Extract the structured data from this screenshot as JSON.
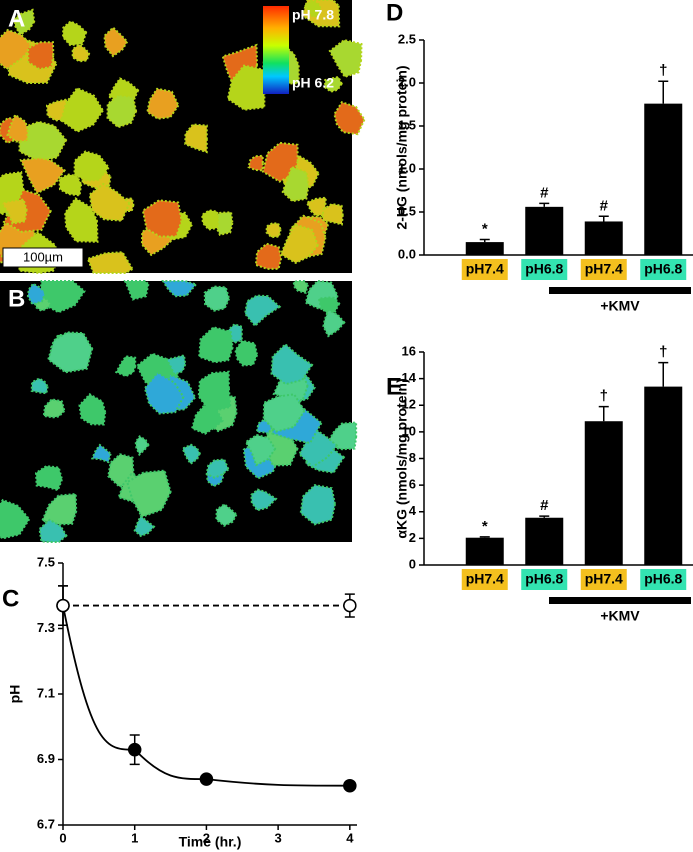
{
  "images": [
    {
      "panel": "A",
      "scale_max": "pH 7.8",
      "scale_min": "pH 6.2",
      "scale_bar": "100µm"
    },
    {
      "panel": "B"
    }
  ],
  "chart_data": [
    {
      "type": "line",
      "panel": "C",
      "x_label": "Time (hr.)",
      "y_label": "pH",
      "xlim": [
        0,
        4.1
      ],
      "xticks": [
        0,
        1,
        2,
        3,
        4
      ],
      "ylim": [
        6.7,
        7.5
      ],
      "yticks": [
        6.7,
        6.9,
        7.1,
        7.3,
        7.5
      ],
      "series": [
        {
          "x": [
            0,
            1,
            2,
            4
          ],
          "values": [
            7.37,
            6.93,
            6.84,
            6.82
          ],
          "errors": [
            0.06,
            0.045,
            0.01,
            0.01
          ],
          "color": "#000000",
          "marker": "filled",
          "dashed": false
        },
        {
          "x": [
            0,
            4
          ],
          "values": [
            7.37,
            7.37
          ],
          "errors": [
            0.06,
            0.035
          ],
          "color": "#000000",
          "marker": "open",
          "dashed": true
        }
      ]
    },
    {
      "type": "bar",
      "panel": "D",
      "y_label": "2-HG (nmols/mg protein)",
      "categories": [
        "pH7.4",
        "pH6.8",
        "pH7.4",
        "pH6.8"
      ],
      "category_colors": [
        "#f4c01e",
        "#33e3b1",
        "#f4c01e",
        "#33e3b1"
      ],
      "values": [
        0.15,
        0.56,
        0.39,
        1.76
      ],
      "errors": [
        0.03,
        0.04,
        0.06,
        0.26
      ],
      "annotations": [
        "*",
        "#",
        "#",
        "†"
      ],
      "color": "#000000",
      "ylim": [
        0,
        2.5
      ],
      "yticks": [
        {
          "value": 0,
          "label": "0.0"
        },
        0.5,
        {
          "value": 1,
          "label": "1.0"
        },
        1.5,
        {
          "value": 2,
          "label": "2.0"
        },
        2.5
      ],
      "bracket": "+KMV"
    },
    {
      "type": "bar",
      "panel": "E",
      "y_label": "αKG (nmols/mg protein)",
      "categories": [
        "pH7.4",
        "pH6.8",
        "pH7.4",
        "pH6.8"
      ],
      "category_colors": [
        "#f4c01e",
        "#33e3b1",
        "#f4c01e",
        "#33e3b1"
      ],
      "values": [
        2.05,
        3.55,
        10.8,
        13.4
      ],
      "errors": [
        0.06,
        0.12,
        1.1,
        1.8
      ],
      "annotations": [
        "*",
        "#",
        "†",
        "†"
      ],
      "color": "#000000",
      "ylim": [
        0,
        16
      ],
      "yticks": [
        0,
        2,
        4,
        6,
        8,
        10,
        12,
        14,
        16
      ],
      "bracket": "+KMV"
    }
  ]
}
